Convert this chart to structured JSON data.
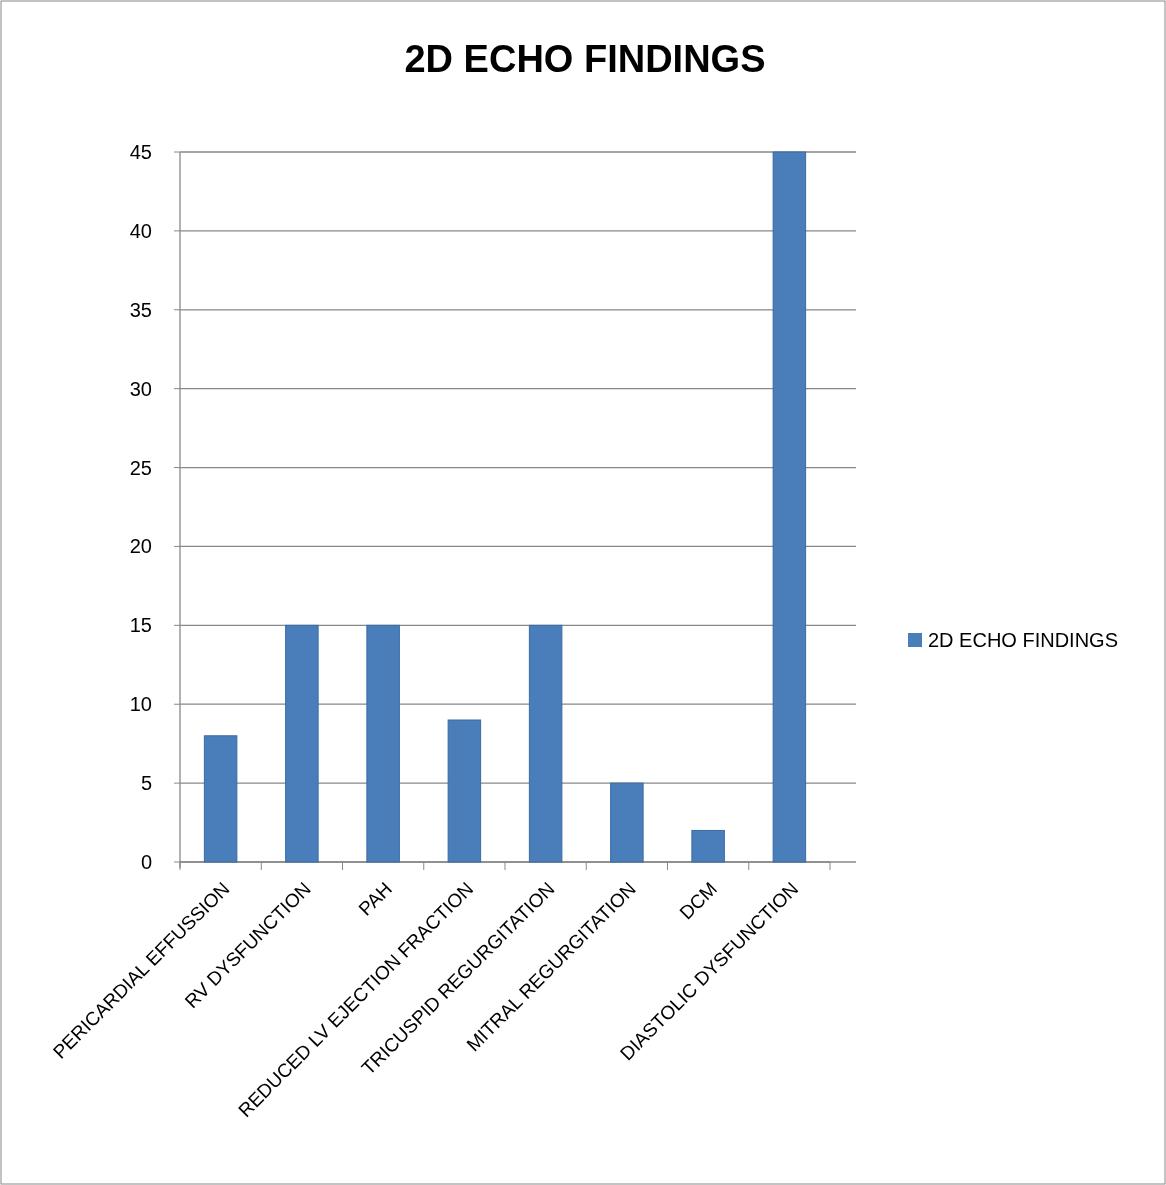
{
  "chart_data": {
    "type": "bar",
    "title": "2D ECHO FINDINGS",
    "categories": [
      "PERICARDIAL EFFUSSION",
      "RV DYSFUNCTION",
      "PAH",
      "REDUCED LV EJECTION FRACTION",
      "TRICUSPID REGURGITATION",
      "MITRAL REGURGITATION",
      "DCM",
      "DIASTOLIC DYSFUNCTION"
    ],
    "series": [
      {
        "name": "2D ECHO FINDINGS",
        "color": "#4a7ebb",
        "values": [
          8,
          15,
          15,
          9,
          15,
          5,
          2,
          45
        ]
      }
    ],
    "ylim": [
      0,
      45
    ],
    "yticks": [
      0,
      5,
      10,
      15,
      20,
      25,
      30,
      35,
      40,
      45
    ],
    "grid": "y",
    "legend": "right"
  }
}
